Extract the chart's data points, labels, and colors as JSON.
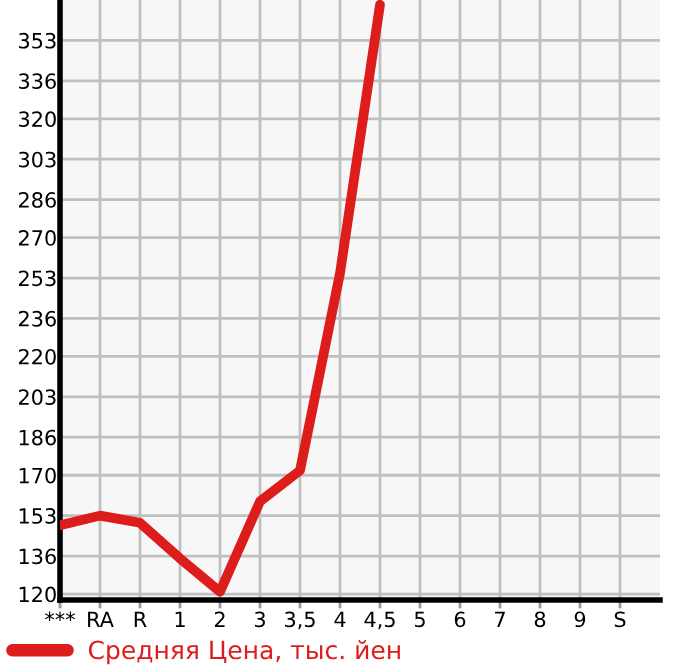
{
  "chart_data": {
    "type": "line",
    "categories": [
      "***",
      "RA",
      "R",
      "1",
      "2",
      "3",
      "3,5",
      "4",
      "4,5",
      "5",
      "6",
      "7",
      "8",
      "9",
      "S"
    ],
    "series": [
      {
        "name": "Средняя Цена, тыс. йен",
        "color": "#dd1c1c",
        "values": [
          149,
          153,
          150,
          135,
          121,
          159,
          172,
          255,
          368,
          null,
          null,
          null,
          null,
          null,
          null
        ]
      }
    ],
    "ylim": [
      117.5,
      370
    ],
    "yticks": [
      120,
      136,
      153,
      170,
      186,
      203,
      220,
      236,
      253,
      270,
      286,
      303,
      320,
      336,
      353
    ],
    "grid": true,
    "legend": "bottom left",
    "marker": "none",
    "line_style": "solid"
  }
}
